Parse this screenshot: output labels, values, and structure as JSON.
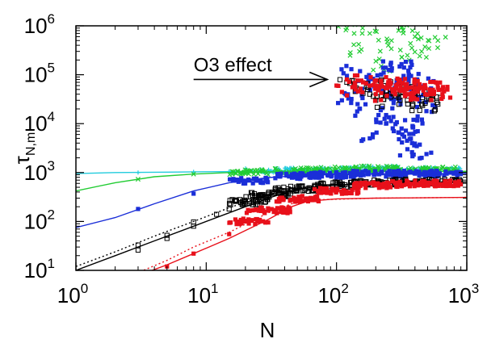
{
  "chart_data": {
    "type": "scatter",
    "xscale": "log",
    "yscale": "log",
    "xlim": [
      1,
      1000
    ],
    "ylim": [
      10,
      1000000
    ],
    "xlabel": "N",
    "ylabel_main": "τ",
    "ylabel_sub": "N,m",
    "xticks": [
      {
        "base": "10",
        "exp": "0",
        "value": 1
      },
      {
        "base": "10",
        "exp": "1",
        "value": 10
      },
      {
        "base": "10",
        "exp": "2",
        "value": 100
      },
      {
        "base": "10",
        "exp": "3",
        "value": 1000
      }
    ],
    "yticks": [
      {
        "base": "10",
        "exp": "1",
        "value": 10
      },
      {
        "base": "10",
        "exp": "2",
        "value": 100
      },
      {
        "base": "10",
        "exp": "3",
        "value": 1000
      },
      {
        "base": "10",
        "exp": "4",
        "value": 10000
      },
      {
        "base": "10",
        "exp": "5",
        "value": 100000
      },
      {
        "base": "10",
        "exp": "6",
        "value": 1000000
      }
    ],
    "annotation": {
      "text": "O3 effect",
      "arrow_from": [
        8,
        80000
      ],
      "arrow_to": [
        85,
        80000
      ]
    },
    "series": [
      {
        "color": "#22ccdd",
        "marker": "plus",
        "curve": [
          [
            1,
            950
          ],
          [
            2,
            1000
          ],
          [
            5,
            1020
          ],
          [
            10,
            1040
          ],
          [
            30,
            1060
          ],
          [
            100,
            1060
          ],
          [
            1000,
            1050
          ]
        ],
        "curve_dash": "solid",
        "points": [
          [
            3,
            1000
          ],
          [
            8,
            1030
          ],
          [
            15,
            1050
          ],
          [
            30,
            1080
          ],
          [
            60,
            1100
          ],
          [
            100,
            1120
          ],
          [
            200,
            1200
          ],
          [
            400,
            1150
          ],
          [
            700,
            1100
          ]
        ]
      },
      {
        "color": "#22cc33",
        "marker": "cross",
        "curve": [
          [
            1,
            420
          ],
          [
            2,
            620
          ],
          [
            4,
            820
          ],
          [
            8,
            930
          ],
          [
            15,
            1000
          ],
          [
            30,
            1030
          ],
          [
            100,
            1060
          ],
          [
            1000,
            1060
          ]
        ],
        "curve_dash": "solid",
        "points": [
          [
            3,
            730
          ],
          [
            8,
            930
          ],
          [
            20,
            1030
          ],
          [
            50,
            1100
          ],
          [
            100,
            1150
          ],
          [
            200,
            1200
          ],
          [
            400,
            1150
          ],
          [
            700,
            1150
          ]
        ],
        "scatter_points": [
          [
            120,
            900000
          ],
          [
            180,
            700000
          ],
          [
            250,
            400000
          ],
          [
            300,
            800000
          ],
          [
            350,
            250000
          ],
          [
            450,
            300000
          ],
          [
            150,
            300000
          ],
          [
            220,
            150000
          ],
          [
            400,
            600000
          ],
          [
            600,
            500000
          ]
        ]
      },
      {
        "color": "#1a2ed8",
        "marker": "square",
        "curve": [
          [
            1,
            75
          ],
          [
            2,
            120
          ],
          [
            4,
            230
          ],
          [
            8,
            420
          ],
          [
            15,
            620
          ],
          [
            30,
            790
          ],
          [
            50,
            860
          ],
          [
            100,
            920
          ],
          [
            1000,
            960
          ]
        ],
        "curve_dash": "solid",
        "points": [
          [
            3,
            180
          ],
          [
            8,
            370
          ],
          [
            20,
            680
          ],
          [
            50,
            850
          ],
          [
            100,
            900
          ],
          [
            200,
            950
          ],
          [
            400,
            950
          ],
          [
            700,
            950
          ]
        ],
        "scatter_points": [
          [
            110,
            30000
          ],
          [
            130,
            130000
          ],
          [
            150,
            20000
          ],
          [
            170,
            90000
          ],
          [
            190,
            60000
          ],
          [
            210,
            15000
          ],
          [
            230,
            110000
          ],
          [
            250,
            40000
          ],
          [
            270,
            8000
          ],
          [
            290,
            70000
          ],
          [
            310,
            25000
          ],
          [
            330,
            140000
          ],
          [
            350,
            3000
          ],
          [
            370,
            50000
          ],
          [
            390,
            12000
          ],
          [
            410,
            80000
          ],
          [
            430,
            35000
          ],
          [
            450,
            2000
          ],
          [
            470,
            60000
          ],
          [
            490,
            18000
          ],
          [
            180,
            5000
          ],
          [
            260,
            160000
          ],
          [
            320,
            6000
          ],
          [
            380,
            4000
          ],
          [
            140,
            45000
          ],
          [
            240,
            10000
          ],
          [
            360,
            100000
          ],
          [
            420,
            7000
          ]
        ]
      },
      {
        "color": "#000000",
        "marker": "square-open",
        "curve": [
          [
            1,
            10
          ],
          [
            2,
            20
          ],
          [
            4,
            40
          ],
          [
            8,
            80
          ],
          [
            15,
            150
          ],
          [
            30,
            300
          ],
          [
            45,
            420
          ],
          [
            70,
            520
          ],
          [
            150,
            590
          ],
          [
            1000,
            640
          ]
        ],
        "curve_dash": "solid",
        "curve2": [
          [
            1,
            12
          ],
          [
            2,
            24
          ],
          [
            4,
            50
          ],
          [
            8,
            100
          ],
          [
            15,
            190
          ],
          [
            30,
            360
          ],
          [
            50,
            480
          ],
          [
            100,
            560
          ],
          [
            1000,
            640
          ]
        ],
        "curve2_dash": "dotted",
        "points": [
          [
            3,
            26
          ],
          [
            3,
            33
          ],
          [
            5,
            45
          ],
          [
            5,
            52
          ],
          [
            8,
            80
          ],
          [
            8,
            98
          ],
          [
            12,
            140
          ],
          [
            15,
            180
          ],
          [
            20,
            250
          ],
          [
            30,
            350
          ],
          [
            50,
            470
          ],
          [
            100,
            560
          ],
          [
            200,
            620
          ],
          [
            400,
            640
          ],
          [
            700,
            640
          ]
        ],
        "scatter_points": [
          [
            120,
            70000
          ],
          [
            150,
            50000
          ],
          [
            180,
            40000
          ],
          [
            200,
            30000
          ],
          [
            230,
            60000
          ],
          [
            260,
            35000
          ],
          [
            290,
            45000
          ],
          [
            320,
            55000
          ],
          [
            350,
            30000
          ],
          [
            400,
            40000
          ],
          [
            450,
            25000
          ],
          [
            500,
            35000
          ],
          [
            600,
            25000
          ]
        ]
      },
      {
        "color": "#e8101a",
        "marker": "square",
        "curve": [
          [
            1,
            2
          ],
          [
            3,
            7.8
          ],
          [
            5,
            13
          ],
          [
            8,
            22
          ],
          [
            15,
            45
          ],
          [
            30,
            110
          ],
          [
            45,
            200
          ],
          [
            60,
            260
          ],
          [
            100,
            290
          ],
          [
            200,
            300
          ],
          [
            1000,
            310
          ]
        ],
        "curve_dash": "solid",
        "curve2": [
          [
            1,
            3
          ],
          [
            3,
            9
          ],
          [
            5,
            16
          ],
          [
            8,
            30
          ],
          [
            15,
            60
          ],
          [
            30,
            150
          ],
          [
            45,
            230
          ],
          [
            80,
            280
          ],
          [
            200,
            300
          ],
          [
            1000,
            310
          ]
        ],
        "curve2_dash": "dotted",
        "points": [
          [
            5,
            12
          ],
          [
            8,
            22
          ],
          [
            15,
            55
          ],
          [
            20,
            100
          ],
          [
            30,
            170
          ],
          [
            50,
            290
          ],
          [
            100,
            420
          ],
          [
            200,
            550
          ],
          [
            400,
            600
          ],
          [
            700,
            600
          ]
        ],
        "scatter_points": [
          [
            100,
            60000
          ],
          [
            120,
            80000
          ],
          [
            140,
            50000
          ],
          [
            160,
            70000
          ],
          [
            180,
            60000
          ],
          [
            200,
            40000
          ],
          [
            220,
            75000
          ],
          [
            240,
            55000
          ],
          [
            260,
            65000
          ],
          [
            280,
            45000
          ],
          [
            300,
            70000
          ],
          [
            320,
            50000
          ],
          [
            340,
            60000
          ],
          [
            360,
            40000
          ],
          [
            380,
            55000
          ],
          [
            400,
            65000
          ],
          [
            420,
            45000
          ],
          [
            450,
            55000
          ],
          [
            480,
            40000
          ],
          [
            520,
            50000
          ],
          [
            560,
            45000
          ],
          [
            600,
            55000
          ],
          [
            650,
            40000
          ]
        ]
      }
    ]
  }
}
